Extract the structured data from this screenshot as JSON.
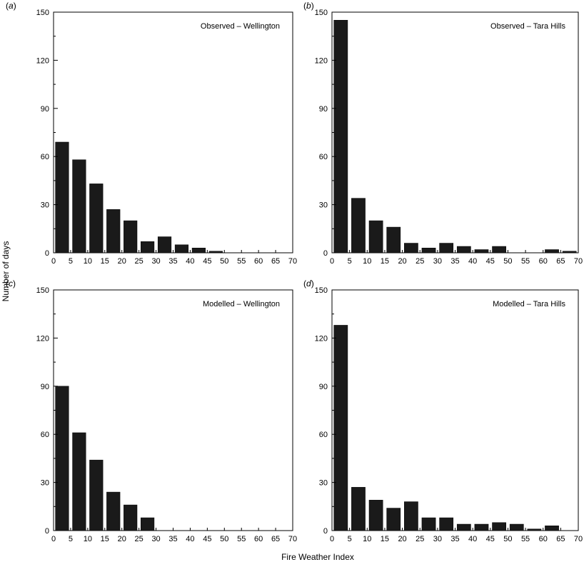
{
  "xlabel": "Fire Weather Index",
  "ylabel": "Number of days",
  "chart_data": [
    {
      "type": "bar",
      "panel": "a",
      "title": "Observed – Wellington",
      "x": [
        2.5,
        7.5,
        12.5,
        17.5,
        22.5,
        27.5,
        32.5,
        37.5,
        42.5,
        47.5
      ],
      "values": [
        69,
        58,
        43,
        27,
        20,
        7,
        10,
        5,
        3,
        1
      ],
      "xlim": [
        0,
        70
      ],
      "ylim": [
        0,
        150
      ],
      "xticks": [
        "0",
        "5",
        "10",
        "15",
        "20",
        "25",
        "30",
        "35",
        "40",
        "45",
        "50",
        "55",
        "60",
        "65",
        "70"
      ],
      "yticks": [
        "0",
        "30",
        "60",
        "90",
        "120",
        "150"
      ]
    },
    {
      "type": "bar",
      "panel": "b",
      "title": "Observed – Tara Hills",
      "x": [
        2.5,
        7.5,
        12.5,
        17.5,
        22.5,
        27.5,
        32.5,
        37.5,
        42.5,
        47.5,
        62.5,
        67.5
      ],
      "values": [
        145,
        34,
        20,
        16,
        6,
        3,
        6,
        4,
        2,
        4,
        2,
        1
      ],
      "xlim": [
        0,
        70
      ],
      "ylim": [
        0,
        150
      ],
      "xticks": [
        "0",
        "5",
        "10",
        "15",
        "20",
        "25",
        "30",
        "35",
        "40",
        "45",
        "50",
        "55",
        "60",
        "65",
        "70"
      ],
      "yticks": [
        "0",
        "30",
        "60",
        "90",
        "120",
        "150"
      ]
    },
    {
      "type": "bar",
      "panel": "c",
      "title": "Modelled – Wellington",
      "x": [
        2.5,
        7.5,
        12.5,
        17.5,
        22.5,
        27.5
      ],
      "values": [
        90,
        61,
        44,
        24,
        16,
        8
      ],
      "xlim": [
        0,
        70
      ],
      "ylim": [
        0,
        150
      ],
      "xticks": [
        "0",
        "5",
        "10",
        "15",
        "20",
        "25",
        "30",
        "35",
        "40",
        "45",
        "50",
        "55",
        "60",
        "65",
        "70"
      ],
      "yticks": [
        "0",
        "30",
        "60",
        "90",
        "120",
        "150"
      ]
    },
    {
      "type": "bar",
      "panel": "d",
      "title": "Modelled – Tara Hills",
      "x": [
        2.5,
        7.5,
        12.5,
        17.5,
        22.5,
        27.5,
        32.5,
        37.5,
        42.5,
        47.5,
        52.5,
        57.5,
        62.5
      ],
      "values": [
        128,
        27,
        19,
        14,
        18,
        8,
        8,
        4,
        4,
        5,
        4,
        1,
        3
      ],
      "xlim": [
        0,
        70
      ],
      "ylim": [
        0,
        150
      ],
      "xticks": [
        "0",
        "5",
        "10",
        "15",
        "20",
        "25",
        "30",
        "35",
        "40",
        "45",
        "50",
        "55",
        "60",
        "65",
        "70"
      ],
      "yticks": [
        "0",
        "30",
        "60",
        "90",
        "120",
        "150"
      ]
    }
  ]
}
